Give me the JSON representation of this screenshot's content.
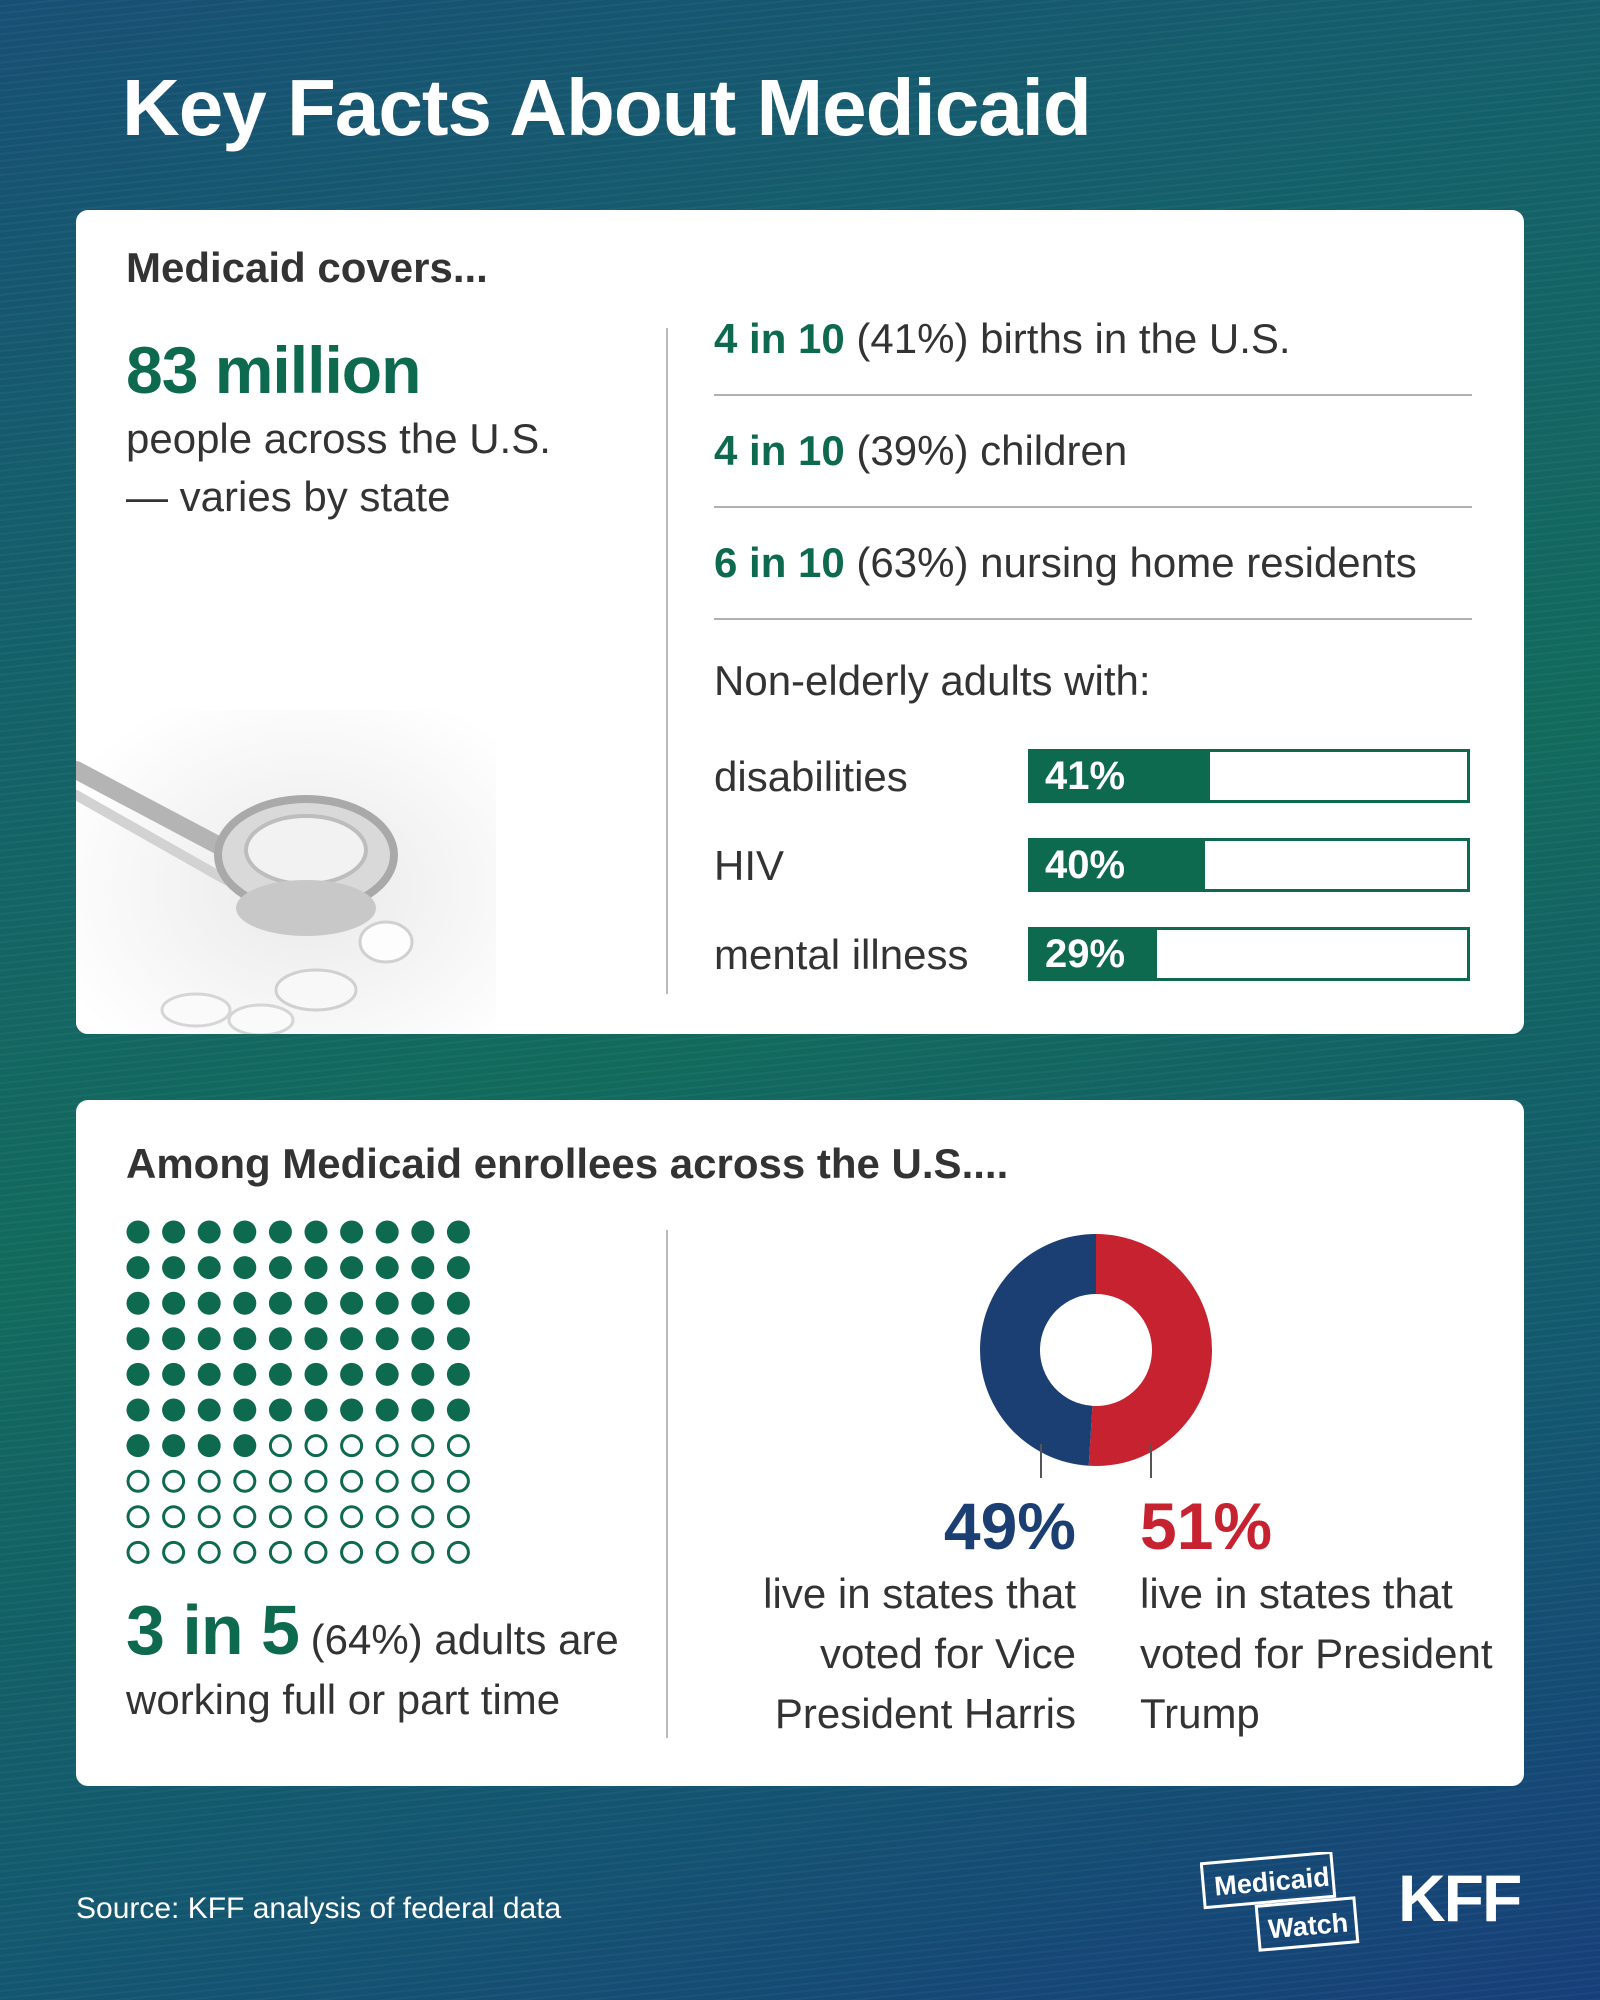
{
  "title": "Key Facts About Medicaid",
  "covers": {
    "heading": "Medicaid covers...",
    "headline_number": "83 million",
    "headline_desc": "people across the U.S. — varies by state",
    "facts": [
      {
        "strong": "4 in 10",
        "rest": " (41%) births in the U.S."
      },
      {
        "strong": "4 in 10",
        "rest": " (39%) children"
      },
      {
        "strong": "6 in 10",
        "rest": " (63%) nursing home residents"
      }
    ],
    "bars_subhead": "Non-elderly adults with:"
  },
  "enrollees": {
    "heading": "Among Medicaid enrollees across the U.S....",
    "working_big": "3 in 5",
    "working_rest": " (64%) adults are working full or part time",
    "harris_pct": "49%",
    "harris_desc": "live in states that voted for Vice President Harris",
    "trump_pct": "51%",
    "trump_desc": "live in states that voted for President Trump"
  },
  "footer": {
    "source": "Source: KFF analysis of federal data",
    "logo_mw_line1": "Medicaid",
    "logo_mw_line2": "Watch",
    "logo_kff": "KFF"
  },
  "colors": {
    "green": "#0e6a4e",
    "blue": "#1b3f73",
    "red": "#c72230"
  },
  "icons": [
    "stethoscope-photo",
    "medicaid-watch-logo",
    "kff-logo"
  ],
  "chart_data": [
    {
      "type": "bar",
      "subtitle": "Non-elderly adults with:",
      "categories": [
        "disabilities",
        "HIV",
        "mental illness"
      ],
      "values": [
        41,
        40,
        29
      ],
      "labels": [
        "41%",
        "40%",
        "29%"
      ],
      "ylim": [
        0,
        100
      ]
    },
    {
      "type": "waffle",
      "total": 100,
      "filled": 64,
      "label": "3 in 5 (64%) adults are working full or part time"
    },
    {
      "type": "pie",
      "donut": true,
      "categories": [
        "live in states that voted for Vice President Harris",
        "live in states that voted for President Trump"
      ],
      "values": [
        49,
        51
      ],
      "labels": [
        "49%",
        "51%"
      ],
      "colors": [
        "#1b3f73",
        "#c72230"
      ]
    }
  ]
}
